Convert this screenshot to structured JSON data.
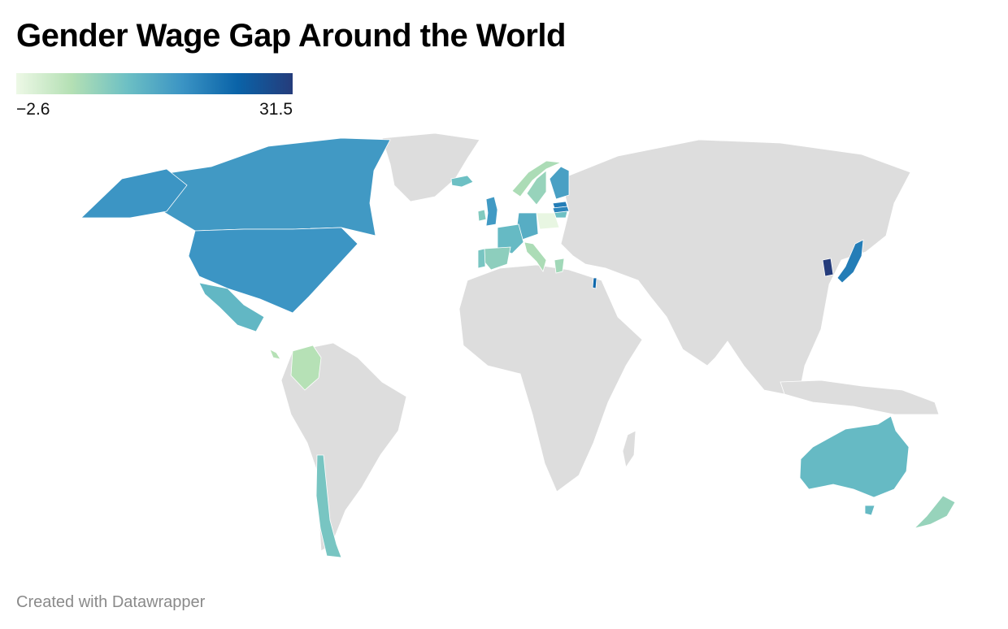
{
  "title": "Gender Wage Gap Around the World",
  "legend": {
    "min_label": "−2.6",
    "max_label": "31.5",
    "min": -2.6,
    "max": 31.5,
    "colors": [
      "#edf8e6",
      "#b4e0b4",
      "#6dc0c4",
      "#3b94c4",
      "#0a63a8",
      "#253c7b"
    ]
  },
  "footer": {
    "credit": "Created with Datawrapper"
  },
  "no_data_color": "#dddddd",
  "chart_data": {
    "type": "choropleth",
    "metric_range": [
      -2.6,
      31.5
    ],
    "regions": [
      {
        "name": "United States",
        "value": 17.7
      },
      {
        "name": "Canada",
        "value": 17.1
      },
      {
        "name": "Mexico",
        "value": 12.5
      },
      {
        "name": "Costa Rica",
        "value": 4.0
      },
      {
        "name": "Colombia",
        "value": 4.0
      },
      {
        "name": "Chile",
        "value": 10.0
      },
      {
        "name": "Iceland",
        "value": 11.0
      },
      {
        "name": "United Kingdom",
        "value": 17.0
      },
      {
        "name": "Ireland",
        "value": 9.0
      },
      {
        "name": "Norway",
        "value": 5.0
      },
      {
        "name": "Sweden",
        "value": 7.0
      },
      {
        "name": "Finland",
        "value": 16.0
      },
      {
        "name": "Estonia",
        "value": 21.0
      },
      {
        "name": "Latvia",
        "value": 20.0
      },
      {
        "name": "Lithuania",
        "value": 11.0
      },
      {
        "name": "Poland",
        "value": -2.0
      },
      {
        "name": "Germany",
        "value": 14.0
      },
      {
        "name": "France",
        "value": 12.0
      },
      {
        "name": "Spain",
        "value": 8.0
      },
      {
        "name": "Portugal",
        "value": 10.0
      },
      {
        "name": "Italy",
        "value": 5.0
      },
      {
        "name": "Greece",
        "value": 6.0
      },
      {
        "name": "Israel",
        "value": 24.0
      },
      {
        "name": "South Korea",
        "value": 31.5
      },
      {
        "name": "Japan",
        "value": 21.0
      },
      {
        "name": "Australia",
        "value": 12.0
      },
      {
        "name": "New Zealand",
        "value": 7.0
      }
    ]
  }
}
